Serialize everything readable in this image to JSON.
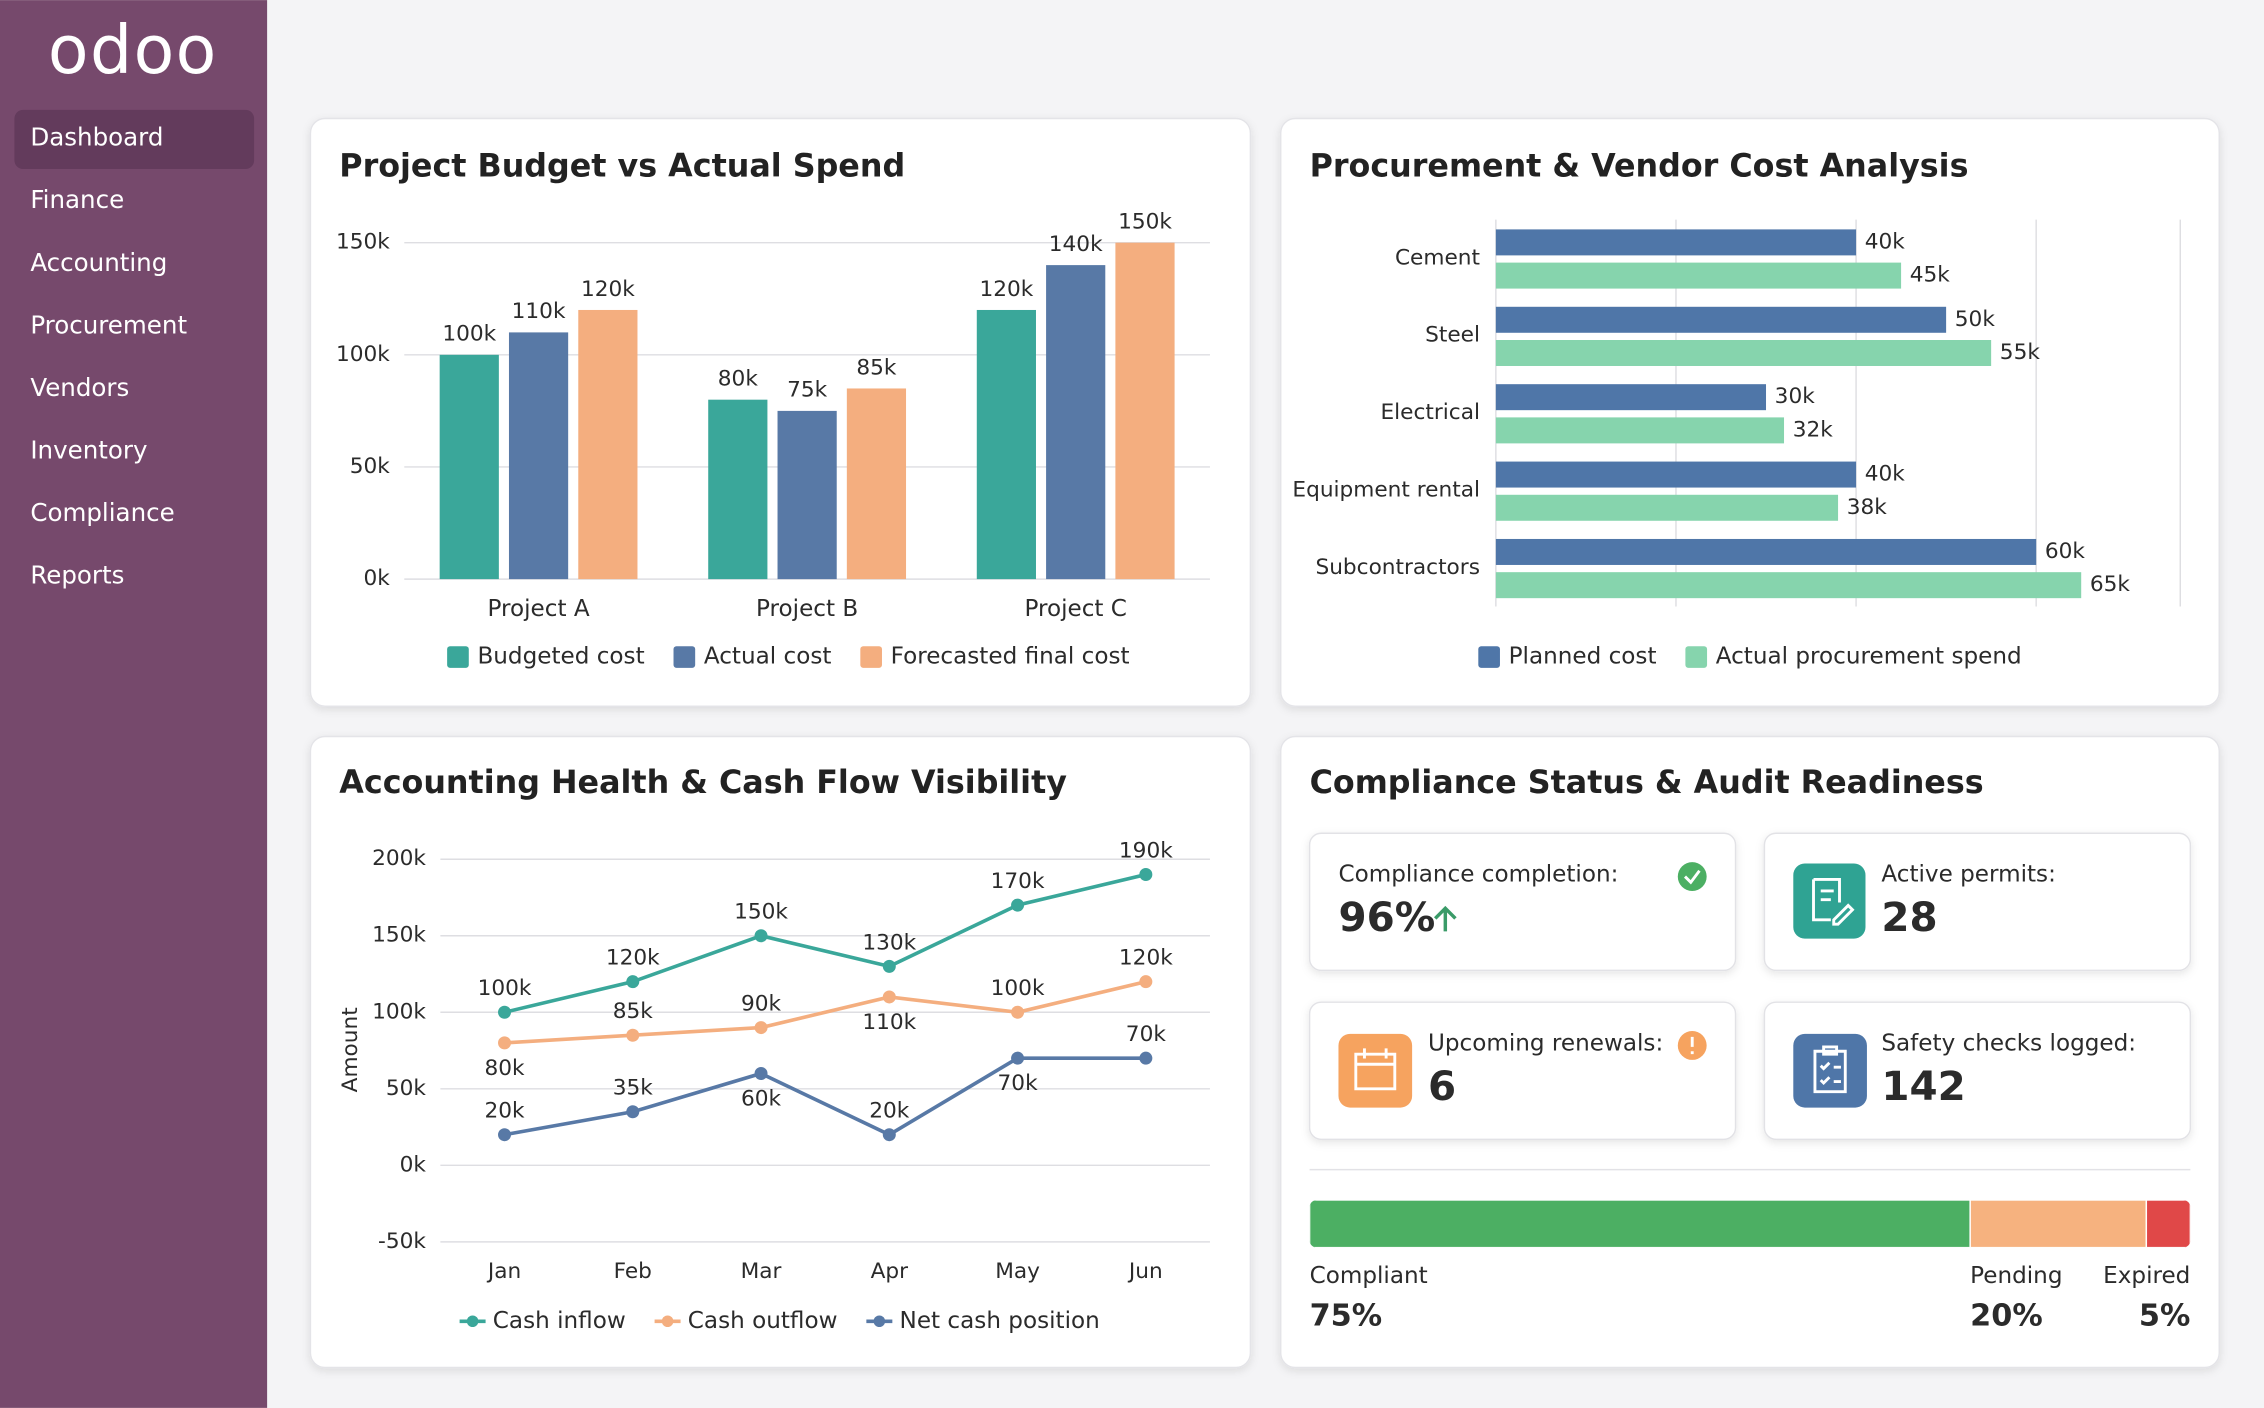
{
  "sidebar": {
    "logo": "odoo",
    "nav": [
      "Dashboard",
      "Finance",
      "Accounting",
      "Procurement",
      "Vendors",
      "Inventory",
      "Compliance",
      "Reports"
    ],
    "active": 0
  },
  "chart_data": [
    {
      "type": "bar",
      "title": "Project Budget vs Actual Spend",
      "categories": [
        "Project A",
        "Project B",
        "Project C"
      ],
      "series": [
        {
          "name": "Budgeted cost",
          "color": "#3aa79a",
          "values": [
            100000,
            80000,
            120000
          ],
          "value_labels": [
            "100k",
            "80k",
            "120k"
          ]
        },
        {
          "name": "Actual cost",
          "color": "#5879a6",
          "values": [
            110000,
            75000,
            140000
          ],
          "value_labels": [
            "110k",
            "75k",
            "140k"
          ]
        },
        {
          "name": "Forecasted final cost",
          "color": "#f4ae7f",
          "values": [
            120000,
            85000,
            150000
          ],
          "value_labels": [
            "120k",
            "85k",
            "150k"
          ]
        }
      ],
      "ylim": [
        0,
        150000
      ],
      "yticks": [
        {
          "value": 0,
          "label": "0k"
        },
        {
          "value": 50000,
          "label": "50k"
        },
        {
          "value": 100000,
          "label": "100k"
        },
        {
          "value": 150000,
          "label": "150k"
        }
      ],
      "grid": true
    },
    {
      "type": "hbar",
      "title": "Procurement & Vendor Cost Analysis",
      "categories": [
        "Cement",
        "Steel",
        "Electrical",
        "Equipment rental",
        "Subcontractors"
      ],
      "series": [
        {
          "name": "Planned cost",
          "color": "#4f76a8",
          "values": [
            40000,
            50000,
            30000,
            40000,
            60000
          ],
          "value_labels": [
            "40k",
            "50k",
            "30k",
            "40k",
            "60k"
          ]
        },
        {
          "name": "Actual procurement spend",
          "color": "#86d4ad",
          "values": [
            45000,
            55000,
            32000,
            38000,
            65000
          ],
          "value_labels": [
            "45k",
            "55k",
            "32k",
            "38k",
            "65k"
          ]
        }
      ],
      "xlim": [
        0,
        76000
      ],
      "xticks": [
        20000,
        40000,
        60000
      ],
      "grid": true
    },
    {
      "type": "line",
      "title": "Accounting Health & Cash Flow Visibility",
      "y_label": "Amount",
      "categories": [
        "Jan",
        "Feb",
        "Mar",
        "Apr",
        "May",
        "Jun"
      ],
      "series": [
        {
          "name": "Cash inflow",
          "color": "#3aa79a",
          "values": [
            100000,
            120000,
            150000,
            130000,
            170000,
            190000
          ],
          "value_labels": [
            "100k",
            "120k",
            "150k",
            "130k",
            "170k",
            "190k"
          ]
        },
        {
          "name": "Cash outflow",
          "color": "#f4ae7f",
          "values": [
            80000,
            85000,
            90000,
            110000,
            100000,
            120000
          ],
          "value_labels": [
            "80k",
            "85k",
            "90k",
            "110k",
            "100k",
            "120k"
          ]
        },
        {
          "name": "Net cash position",
          "color": "#5879a6",
          "values": [
            20000,
            35000,
            60000,
            20000,
            70000,
            70000
          ],
          "value_labels": [
            "20k",
            "35k",
            "60k",
            "20k",
            "70k",
            "70k"
          ]
        }
      ],
      "ylim": [
        -50000,
        200000
      ],
      "yticks": [
        {
          "value": -50000,
          "label": "-50k"
        },
        {
          "value": 0,
          "label": "0k"
        },
        {
          "value": 50000,
          "label": "50k"
        },
        {
          "value": 100000,
          "label": "100k"
        },
        {
          "value": 150000,
          "label": "150k"
        },
        {
          "value": 200000,
          "label": "200k"
        }
      ],
      "grid": true
    },
    {
      "type": "progress",
      "series": [
        {
          "name": "Compliant",
          "color": "#4caf63",
          "values": [
            75
          ],
          "value_labels": [
            "75%"
          ]
        },
        {
          "name": "Pending",
          "color": "#f6b27f",
          "values": [
            20
          ],
          "value_labels": [
            "20%"
          ]
        },
        {
          "name": "Expired",
          "color": "#e04848",
          "values": [
            5
          ],
          "value_labels": [
            "5%"
          ]
        }
      ],
      "xlim": [
        0,
        100
      ]
    }
  ],
  "compliance": {
    "title": "Compliance Status & Audit Readiness",
    "kpis": [
      {
        "label": "Compliance completion:",
        "value": "96%"
      },
      {
        "label": "Active permits:",
        "value": "28"
      },
      {
        "label": "Upcoming renewals:",
        "value": "6"
      },
      {
        "label": "Safety checks logged:",
        "value": "142"
      }
    ]
  }
}
